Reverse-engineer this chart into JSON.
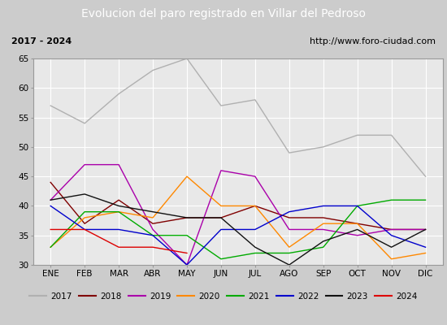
{
  "title": "Evolucion del paro registrado en Villar del Pedroso",
  "subtitle_left": "2017 - 2024",
  "subtitle_right": "http://www.foro-ciudad.com",
  "months": [
    "ENE",
    "FEB",
    "MAR",
    "ABR",
    "MAY",
    "JUN",
    "JUL",
    "AGO",
    "SEP",
    "OCT",
    "NOV",
    "DIC"
  ],
  "ylim": [
    30,
    65
  ],
  "yticks": [
    30,
    35,
    40,
    45,
    50,
    55,
    60,
    65
  ],
  "series": {
    "2017": {
      "color": "#b0b0b0",
      "values": [
        57,
        54,
        59,
        63,
        65,
        57,
        58,
        49,
        50,
        52,
        52,
        45
      ]
    },
    "2018": {
      "color": "#800000",
      "values": [
        44,
        37,
        41,
        37,
        38,
        38,
        40,
        38,
        38,
        37,
        36,
        36
      ]
    },
    "2019": {
      "color": "#aa00aa",
      "values": [
        41,
        47,
        47,
        36,
        30,
        46,
        45,
        36,
        36,
        35,
        36,
        36
      ]
    },
    "2020": {
      "color": "#ff8800",
      "values": [
        33,
        38,
        39,
        38,
        45,
        40,
        40,
        33,
        37,
        37,
        31,
        32
      ]
    },
    "2021": {
      "color": "#00aa00",
      "values": [
        33,
        39,
        39,
        35,
        35,
        31,
        32,
        32,
        33,
        40,
        41,
        41
      ]
    },
    "2022": {
      "color": "#0000cc",
      "values": [
        40,
        36,
        36,
        35,
        30,
        36,
        36,
        39,
        40,
        40,
        35,
        33
      ]
    },
    "2023": {
      "color": "#111111",
      "values": [
        41,
        42,
        40,
        39,
        38,
        38,
        33,
        30,
        34,
        36,
        33,
        36
      ]
    },
    "2024": {
      "color": "#dd0000",
      "values": [
        36,
        36,
        33,
        33,
        32,
        null,
        null,
        null,
        null,
        null,
        null,
        null
      ]
    }
  },
  "title_bg": "#4477cc",
  "title_color": "#ffffff",
  "title_fontsize": 10,
  "subtitle_fontsize": 8,
  "legend_fontsize": 7.5,
  "axis_fontsize": 7.5,
  "plot_bg": "#e8e8e8",
  "grid_color": "#ffffff",
  "outer_bg": "#cccccc"
}
